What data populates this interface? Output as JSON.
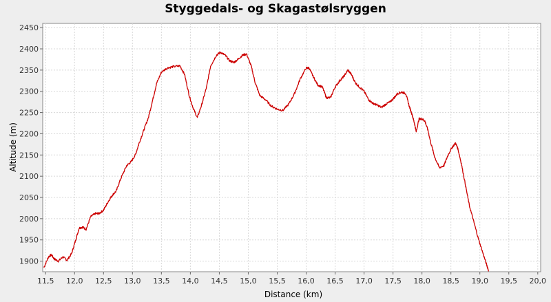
{
  "chart_data": {
    "type": "line",
    "title": "Styggedals- og Skagastølsryggen",
    "xlabel": "Distance (km)",
    "ylabel": "Altitude (m)",
    "xlim": [
      11.45,
      20.05
    ],
    "ylim": [
      1875,
      2460
    ],
    "x_ticks": [
      11.5,
      12.0,
      12.5,
      13.0,
      13.5,
      14.0,
      14.5,
      15.0,
      15.5,
      16.0,
      16.5,
      17.0,
      17.5,
      18.0,
      18.5,
      19.0,
      19.5,
      20.0
    ],
    "x_tick_labels": [
      "11,5",
      "12,0",
      "12,5",
      "13,0",
      "13,5",
      "14,0",
      "14,5",
      "15,0",
      "15,5",
      "16,0",
      "16,5",
      "17,0",
      "17,5",
      "18,0",
      "18,5",
      "19,0",
      "19,5",
      "20,0"
    ],
    "y_ticks": [
      1900,
      1950,
      2000,
      2050,
      2100,
      2150,
      2200,
      2250,
      2300,
      2350,
      2400,
      2450
    ],
    "y_tick_labels": [
      "1900",
      "1950",
      "2000",
      "2050",
      "2100",
      "2150",
      "2200",
      "2250",
      "2300",
      "2350",
      "2400",
      "2450"
    ],
    "grid": true,
    "legend": "none",
    "colors": {
      "line": "#cc0000",
      "plot_bg": "#ffffff",
      "grid": "#d8d8d8",
      "page_bg": "#eeeeee"
    },
    "series": [
      {
        "x": [
          11.47,
          11.55,
          11.6,
          11.65,
          11.72,
          11.8,
          11.87,
          11.95,
          12.02,
          12.08,
          12.14,
          12.2,
          12.28,
          12.36,
          12.42,
          12.5,
          12.58,
          12.65,
          12.72,
          12.8,
          12.9,
          12.97,
          13.05,
          13.12,
          13.2,
          13.28,
          13.35,
          13.42,
          13.5,
          13.6,
          13.7,
          13.82,
          13.9,
          13.98,
          14.05,
          14.12,
          14.2,
          14.28,
          14.35,
          14.45,
          14.52,
          14.6,
          14.68,
          14.75,
          14.82,
          14.9,
          14.97,
          15.05,
          15.12,
          15.2,
          15.3,
          15.4,
          15.5,
          15.6,
          15.7,
          15.8,
          15.9,
          16.0,
          16.05,
          16.12,
          16.2,
          16.28,
          16.35,
          16.42,
          16.5,
          16.58,
          16.65,
          16.72,
          16.78,
          16.85,
          16.92,
          17.0,
          17.08,
          17.15,
          17.22,
          17.3,
          17.38,
          17.45,
          17.52,
          17.58,
          17.65,
          17.72,
          17.78,
          17.83,
          17.87,
          17.9,
          17.95,
          18.0,
          18.05,
          18.1,
          18.15,
          18.22,
          18.3,
          18.38,
          18.45,
          18.52,
          18.58,
          18.62,
          18.68,
          18.75,
          18.82,
          18.9,
          18.98,
          19.05,
          19.12,
          19.15
        ],
        "y": [
          1885,
          1910,
          1915,
          1905,
          1900,
          1910,
          1902,
          1918,
          1950,
          1978,
          1980,
          1975,
          2005,
          2012,
          2012,
          2020,
          2040,
          2055,
          2065,
          2095,
          2125,
          2133,
          2150,
          2180,
          2210,
          2240,
          2280,
          2320,
          2345,
          2355,
          2358,
          2360,
          2340,
          2290,
          2260,
          2238,
          2270,
          2310,
          2360,
          2385,
          2392,
          2385,
          2372,
          2368,
          2375,
          2385,
          2388,
          2360,
          2320,
          2290,
          2280,
          2265,
          2258,
          2255,
          2270,
          2295,
          2330,
          2355,
          2355,
          2335,
          2315,
          2310,
          2285,
          2285,
          2310,
          2325,
          2335,
          2350,
          2340,
          2320,
          2310,
          2300,
          2280,
          2272,
          2268,
          2262,
          2270,
          2275,
          2285,
          2295,
          2298,
          2295,
          2265,
          2245,
          2225,
          2205,
          2235,
          2235,
          2230,
          2210,
          2180,
          2145,
          2120,
          2125,
          2150,
          2168,
          2178,
          2165,
          2130,
          2080,
          2030,
          1990,
          1950,
          1920,
          1890,
          1878
        ]
      }
    ]
  }
}
